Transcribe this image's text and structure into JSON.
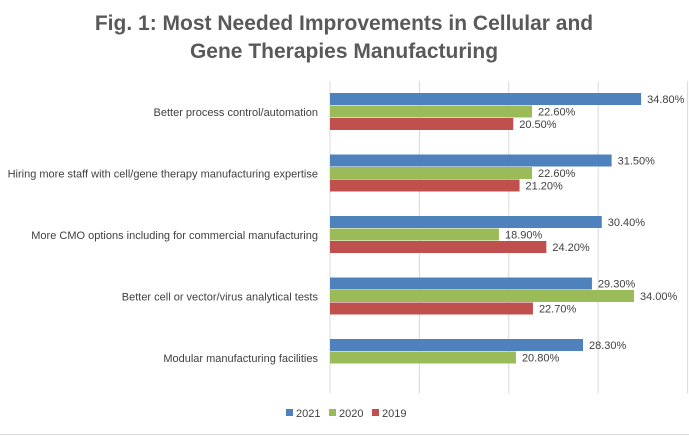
{
  "chart_data": {
    "type": "bar",
    "orientation": "horizontal",
    "title": [
      "Fig. 1:  Most Needed Improvements in Cellular and",
      "Gene Therapies Manufacturing"
    ],
    "categories": [
      "Better process control/automation",
      "Hiring more staff with cell/gene therapy manufacturing expertise",
      "More CMO options including for commercial manufacturing",
      "Better cell or vector/virus analytical tests",
      "Modular manufacturing facilities"
    ],
    "series": [
      {
        "name": "2021",
        "color": "#4f81bd",
        "values": [
          34.8,
          31.5,
          30.4,
          29.3,
          28.3
        ]
      },
      {
        "name": "2020",
        "color": "#9bbb59",
        "values": [
          22.6,
          22.6,
          18.9,
          34.0,
          20.8
        ]
      },
      {
        "name": "2019",
        "color": "#c0504d",
        "values": [
          20.5,
          21.2,
          24.2,
          22.7,
          null
        ]
      }
    ],
    "data_label_format": "0.00%",
    "xlim": [
      0,
      40
    ],
    "grid": true,
    "x_tick_labels_visible": false,
    "legend": "bottom"
  }
}
